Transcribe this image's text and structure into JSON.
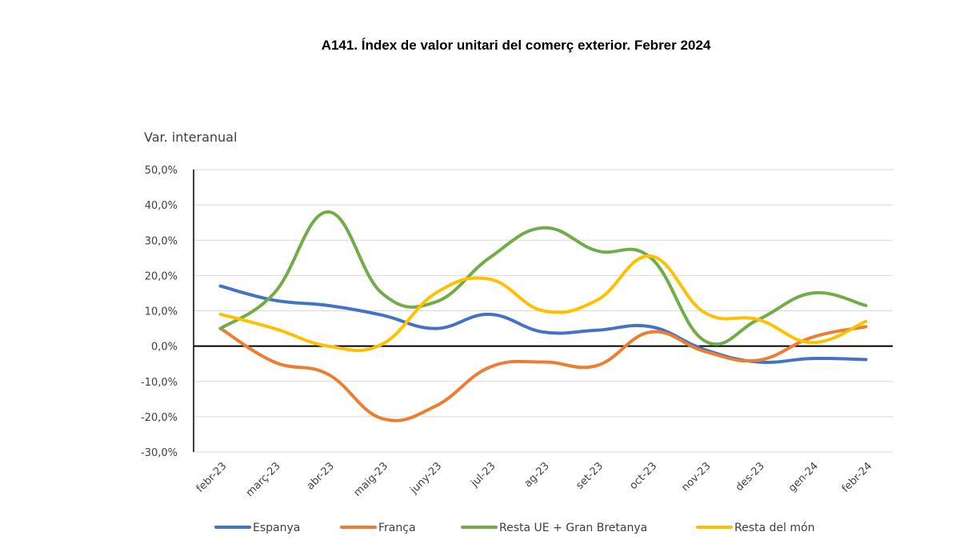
{
  "chart_data": {
    "type": "line",
    "title": "A141. Índex de valor unitari del comerç exterior. Febrer 2024",
    "ylabel": "Var. interanual",
    "xlabel": "",
    "ylim": [
      -30,
      50
    ],
    "yticks": [
      -30,
      -20,
      -10,
      0,
      10,
      20,
      30,
      40,
      50
    ],
    "ytick_labels": [
      "-30,0%",
      "-20,0%",
      "-10,0%",
      "0,0%",
      "10,0%",
      "20,0%",
      "30,0%",
      "40,0%",
      "50,0%"
    ],
    "grid": true,
    "legend_position": "bottom",
    "categories": [
      "febr-23",
      "març-23",
      "abr-23",
      "maig-23",
      "juny-23",
      "jul-23",
      "ag-23",
      "set-23",
      "oct-23",
      "nov-23",
      "des-23",
      "gen-24",
      "febr-24"
    ],
    "series": [
      {
        "name": "Espanya",
        "color": "#4472c4",
        "values": [
          17.0,
          13.0,
          11.5,
          8.8,
          5.0,
          9.0,
          4.0,
          4.5,
          5.5,
          -1.0,
          -4.5,
          -3.5,
          -3.8
        ]
      },
      {
        "name": "França",
        "color": "#ed7d31",
        "values": [
          5.0,
          -4.5,
          -8.0,
          -20.5,
          -17.0,
          -6.0,
          -4.5,
          -5.5,
          4.0,
          -1.5,
          -4.0,
          2.5,
          5.5
        ]
      },
      {
        "name": "Resta UE + Gran Bretanya",
        "color": "#70ad47",
        "values": [
          5.0,
          15.0,
          38.0,
          15.0,
          12.5,
          25.0,
          33.5,
          27.0,
          25.0,
          1.5,
          7.5,
          15.0,
          11.5
        ]
      },
      {
        "name": "Resta del món",
        "color": "#ffc000",
        "values": [
          9.0,
          5.0,
          0.0,
          0.5,
          15.0,
          19.0,
          10.0,
          13.0,
          25.5,
          9.5,
          7.5,
          1.0,
          7.0
        ]
      }
    ]
  }
}
